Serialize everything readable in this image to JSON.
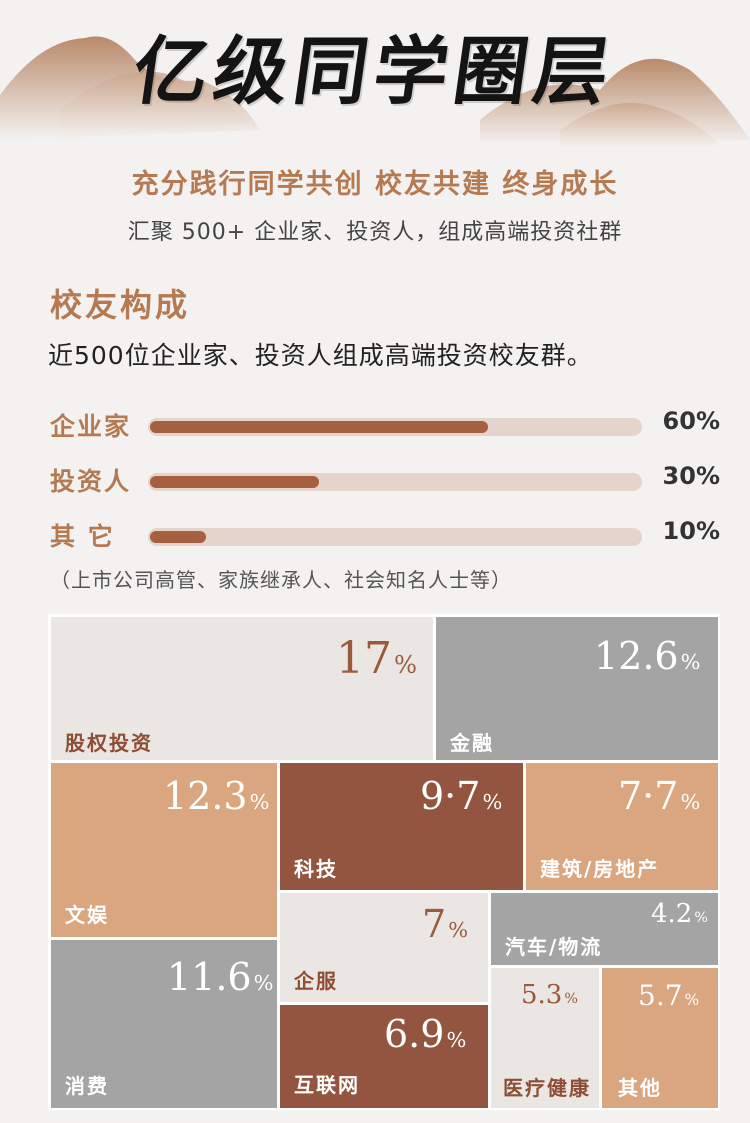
{
  "header": {
    "title": "亿级同学圈层",
    "slogan": "充分践行同学共创 校友共建 终身成长",
    "subslogan": "汇聚 500+ 企业家、投资人，组成高端投资社群"
  },
  "section": {
    "title": "校友构成",
    "description": "近500位企业家、投资人组成高端投资校友群。",
    "note": "（上市公司高管、家族继承人、社会知名人士等）"
  },
  "composition": [
    {
      "label": "企业家",
      "value": 60,
      "pct": "60%"
    },
    {
      "label": "投资人",
      "value": 30,
      "pct": "30%"
    },
    {
      "label": "其 它",
      "value": 10,
      "pct": "10%"
    }
  ],
  "colors": {
    "accent": "#b57a52",
    "bar_fill": "#a6603f",
    "bar_track": "#e4d4cb",
    "tile_light": "#eae6e4",
    "tile_gray": "#a4a4a4",
    "tile_tan": "#d9a67f",
    "tile_brown": "#93553f"
  },
  "chart_data": [
    {
      "type": "bar",
      "categories": [
        "企业家",
        "投资人",
        "其 它"
      ],
      "values": [
        60,
        30,
        10
      ],
      "xlim": [
        0,
        100
      ]
    },
    {
      "type": "treemap",
      "items": [
        {
          "label": "股权投资",
          "value": 17,
          "display": "17",
          "color": "light"
        },
        {
          "label": "金融",
          "value": 12.6,
          "display": "12.6",
          "color": "gray"
        },
        {
          "label": "文娱",
          "value": 12.3,
          "display": "12.3",
          "color": "tan"
        },
        {
          "label": "科技",
          "value": 9.7,
          "display": "9·7",
          "color": "brown"
        },
        {
          "label": "建筑/房地产",
          "value": 7.7,
          "display": "7·7",
          "color": "tan"
        },
        {
          "label": "企服",
          "value": 7,
          "display": "7",
          "color": "light"
        },
        {
          "label": "汽车/物流",
          "value": 4.2,
          "display": "4.2",
          "color": "gray"
        },
        {
          "label": "消费",
          "value": 11.6,
          "display": "11.6",
          "color": "gray"
        },
        {
          "label": "互联网",
          "value": 6.9,
          "display": "6.9",
          "color": "brown"
        },
        {
          "label": "医疗健康",
          "value": 5.3,
          "display": "5.3",
          "color": "light"
        },
        {
          "label": "其他",
          "value": 5.7,
          "display": "5.7",
          "color": "tan"
        }
      ],
      "unit": "%"
    }
  ]
}
